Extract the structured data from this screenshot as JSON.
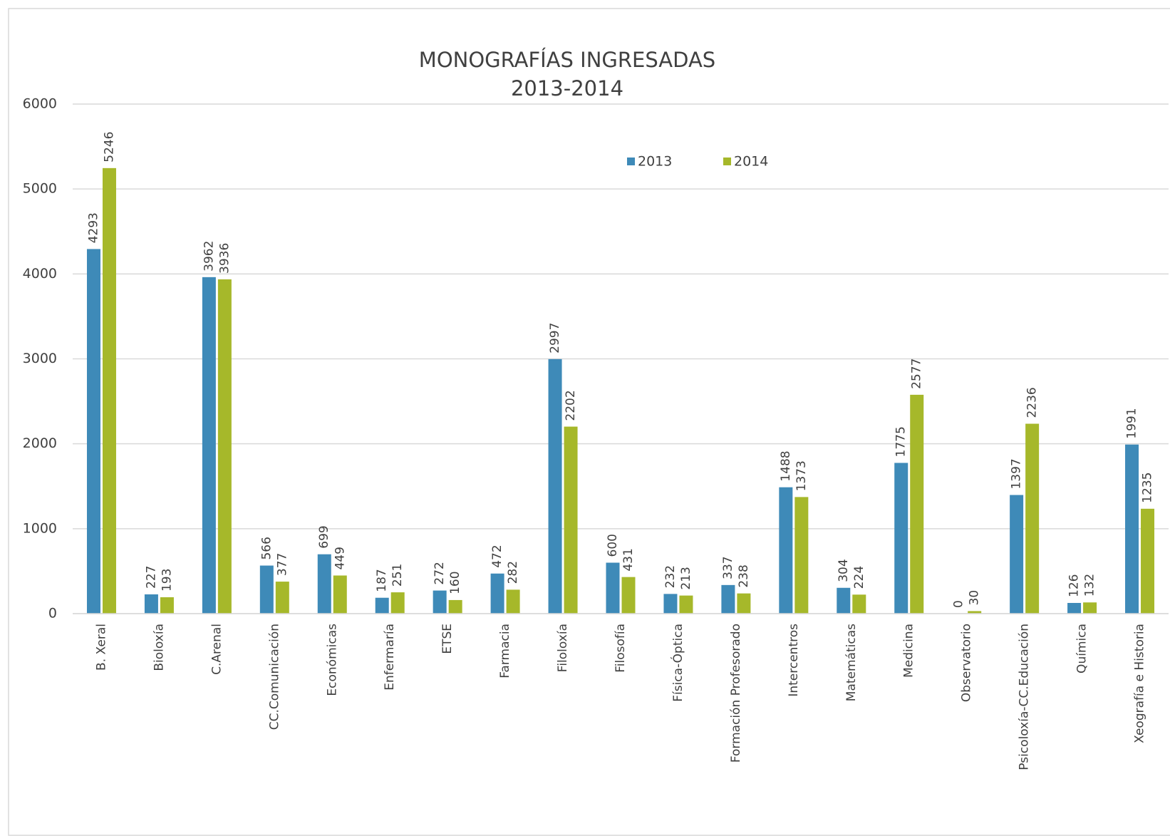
{
  "chart_data": {
    "type": "bar",
    "title": "MONOGRAFÍAS INGRESADAS",
    "subtitle": "2013-2014",
    "categories": [
      "B. Xeral",
      "Bioloxía",
      "C.Arenal",
      "CC.Comunicación",
      "Económicas",
      "Enfermaría",
      "ETSE",
      "Farmacia",
      "Filoloxía",
      "Filosofía",
      "Física-Óptica",
      "Formación Profesorado",
      "Intercentros",
      "Matemáticas",
      "Medicina",
      "Observatorio",
      "Psicoloxía-CC.Educación",
      "Química",
      "Xeografía e Historia"
    ],
    "series": [
      {
        "name": "2013",
        "color": "#3e8ab8",
        "values": [
          4293,
          227,
          3962,
          566,
          699,
          187,
          272,
          472,
          2997,
          600,
          232,
          337,
          1488,
          304,
          1775,
          0,
          1397,
          126,
          1991
        ]
      },
      {
        "name": "2014",
        "color": "#a6b82a",
        "values": [
          5246,
          193,
          3936,
          377,
          449,
          251,
          160,
          282,
          2202,
          431,
          213,
          238,
          1373,
          224,
          2577,
          30,
          2236,
          132,
          1235
        ]
      }
    ],
    "ylim": [
      0,
      6000
    ],
    "yticks": [
      0,
      1000,
      2000,
      3000,
      4000,
      5000,
      6000
    ],
    "grid": true,
    "legend": "top"
  }
}
